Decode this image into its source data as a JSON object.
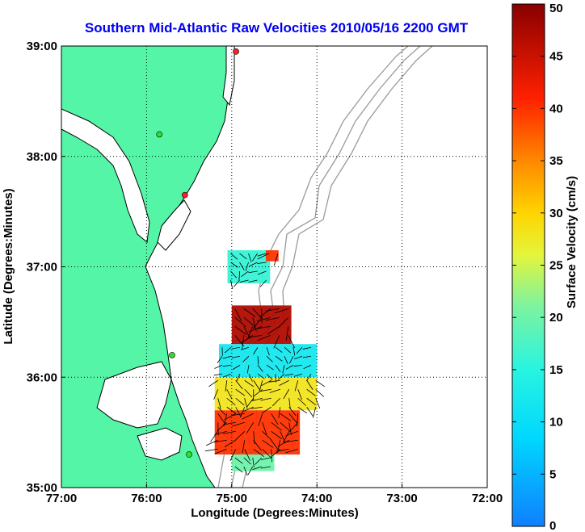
{
  "chart_data": {
    "type": "heatmap",
    "title": "Southern Mid-Atlantic Raw Velocities 2010/05/16 2200 GMT",
    "xlabel": "Longitude (Degrees:Minutes)",
    "ylabel": "Latitude (Degrees:Minutes)",
    "xlim": [
      -77,
      -72
    ],
    "ylim": [
      35,
      39
    ],
    "x_ticks": [
      "77:00",
      "76:00",
      "75:00",
      "74:00",
      "73:00",
      "72:00"
    ],
    "y_ticks": [
      "35:00",
      "36:00",
      "37:00",
      "38:00",
      "39:00"
    ],
    "grid": true,
    "colorbar": {
      "label": "Surface Velocity (cm/s)",
      "min": 0,
      "max": 50,
      "ticks": [
        "0",
        "5",
        "10",
        "15",
        "20",
        "25",
        "30",
        "35",
        "40",
        "45",
        "50"
      ]
    },
    "colors": {
      "land": "#55f5a8",
      "title": "#0000ee",
      "coast": "#000000",
      "bathymetry": "#9a9a9a",
      "grid": "#000000",
      "vectors": "#000000"
    },
    "velocity_regions": [
      {
        "name": "patch-north",
        "lon": [
          -75.05,
          -74.55
        ],
        "lat": [
          36.85,
          37.15
        ],
        "speed_cm_s": 16
      },
      {
        "name": "patch-north-east",
        "lon": [
          -74.6,
          -74.45
        ],
        "lat": [
          37.05,
          37.15
        ],
        "speed_cm_s": 40
      },
      {
        "name": "hotspot-north-eddy",
        "lon": [
          -75.0,
          -74.3
        ],
        "lat": [
          36.3,
          36.65
        ],
        "speed_cm_s": 47
      },
      {
        "name": "slow-band",
        "lon": [
          -75.15,
          -74.0
        ],
        "lat": [
          36.0,
          36.3
        ],
        "speed_cm_s": 12
      },
      {
        "name": "mid-field",
        "lon": [
          -75.2,
          -74.0
        ],
        "lat": [
          35.7,
          36.0
        ],
        "speed_cm_s": 28
      },
      {
        "name": "hotspot-south",
        "lon": [
          -75.2,
          -74.2
        ],
        "lat": [
          35.3,
          35.7
        ],
        "speed_cm_s": 40
      },
      {
        "name": "south-edge",
        "lon": [
          -75.0,
          -74.5
        ],
        "lat": [
          35.15,
          35.3
        ],
        "speed_cm_s": 20
      }
    ],
    "stations": [
      {
        "lon": -74.95,
        "lat": 38.95,
        "color": "#ff2020"
      },
      {
        "lon": -75.85,
        "lat": 38.2,
        "color": "#30e030"
      },
      {
        "lon": -75.55,
        "lat": 37.65,
        "color": "#ff2020"
      },
      {
        "lon": -75.7,
        "lat": 36.2,
        "color": "#30e030"
      },
      {
        "lon": -75.5,
        "lat": 35.3,
        "color": "#30e030"
      }
    ]
  }
}
